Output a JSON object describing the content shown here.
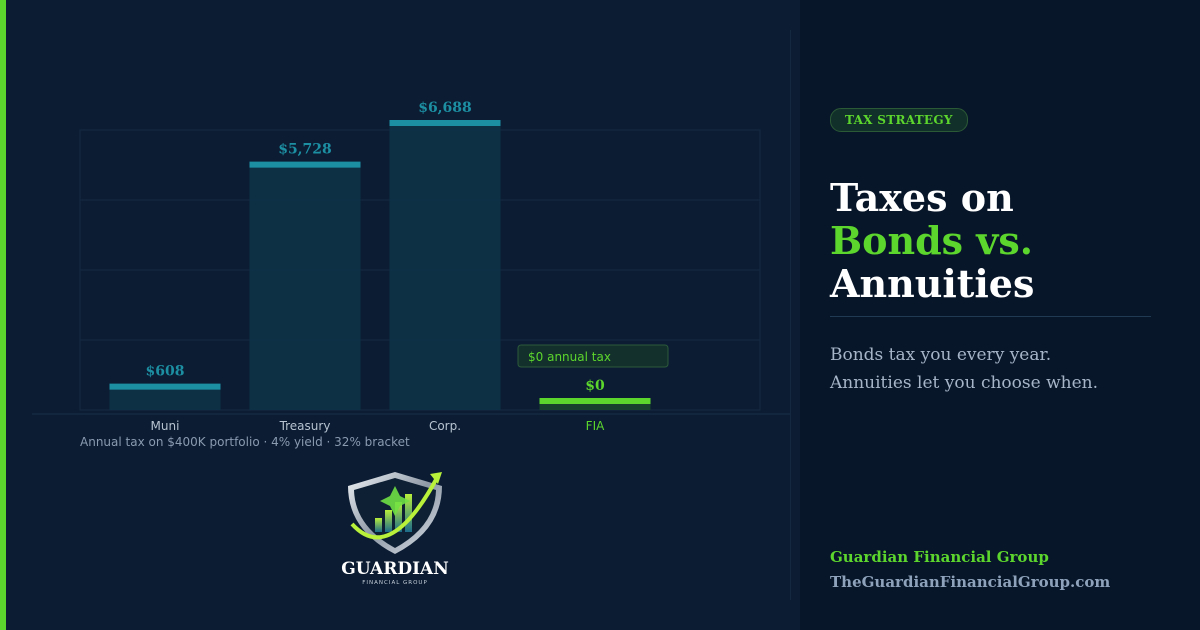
{
  "chart_data": {
    "type": "bar",
    "categories": [
      "Muni",
      "Treasury",
      "Corp.",
      "FIA"
    ],
    "values": [
      608,
      5728,
      6688,
      0
    ],
    "value_labels": [
      "$608",
      "$5,728",
      "$6,688",
      "$0"
    ],
    "ylim": [
      0,
      6688
    ],
    "grid": true,
    "caption": "Annual tax on $400K portfolio · 4% yield · 32% bracket",
    "annotation": "$0 annual tax",
    "colors": {
      "bar": "#1d8fa3",
      "bar_fill": "#0f3247",
      "highlight": "#5cd62d",
      "value_label": "#1d8fa3",
      "category_label": "#b7c3d0",
      "highlight_label": "#5cd62d"
    }
  },
  "logo": {
    "name": "GUARDIAN",
    "tagline": "FINANCIAL GROUP"
  },
  "sidebar": {
    "badge": "TAX STRATEGY",
    "headline": [
      "Taxes on",
      "Bonds vs.",
      "Annuities"
    ],
    "subtext": [
      "Bonds tax you every year.",
      "Annuities let you choose when."
    ],
    "brand": "Guardian Financial Group",
    "url": "TheGuardianFinancialGroup.com"
  }
}
